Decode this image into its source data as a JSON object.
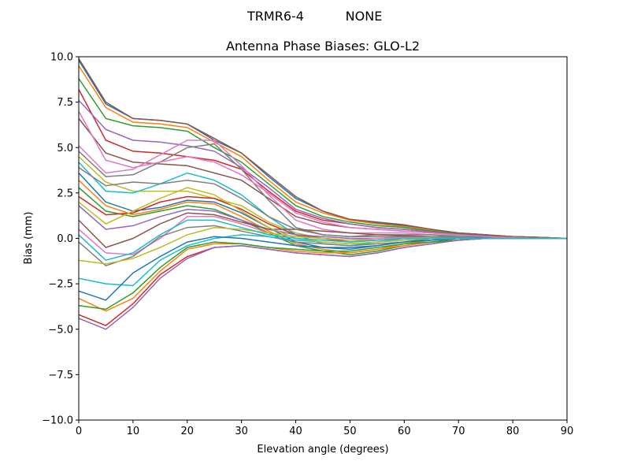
{
  "figure": {
    "suptitle_left": "TRMR6-4",
    "suptitle_right": "NONE"
  },
  "chart_data": {
    "type": "line",
    "title": "Antenna Phase Biases: GLO-L2",
    "xlabel": "Elevation angle (degrees)",
    "ylabel": "Bias (mm)",
    "xlim": [
      0,
      90
    ],
    "ylim": [
      -10,
      10
    ],
    "xticks": [
      0,
      10,
      20,
      30,
      40,
      50,
      60,
      70,
      80,
      90
    ],
    "yticks": [
      -10.0,
      -7.5,
      -5.0,
      -2.5,
      0.0,
      2.5,
      5.0,
      7.5,
      10.0
    ],
    "grid": false,
    "legend": "none",
    "colors": [
      "#1f77b4",
      "#ff7f0e",
      "#2ca02c",
      "#d62728",
      "#9467bd",
      "#8c564b",
      "#e377c2",
      "#7f7f7f",
      "#bcbd22",
      "#17becf"
    ],
    "x": [
      0,
      5,
      10,
      15,
      20,
      25,
      30,
      35,
      40,
      45,
      50,
      55,
      60,
      65,
      70,
      75,
      80,
      85,
      90
    ],
    "series": [
      {
        "values": [
          9.8,
          7.4,
          6.6,
          6.5,
          6.3,
          5.4,
          4.7,
          3.4,
          2.2,
          1.5,
          1.0,
          0.85,
          0.7,
          0.5,
          0.3,
          0.2,
          0.1,
          0.05,
          0
        ]
      },
      {
        "values": [
          9.5,
          7.2,
          6.4,
          6.3,
          6.1,
          5.3,
          4.5,
          3.2,
          2.0,
          1.4,
          1.0,
          0.8,
          0.65,
          0.45,
          0.3,
          0.2,
          0.1,
          0.05,
          0
        ]
      },
      {
        "values": [
          8.8,
          6.6,
          6.2,
          6.1,
          5.9,
          5.0,
          4.2,
          3.0,
          1.8,
          1.2,
          0.9,
          0.7,
          0.6,
          0.4,
          0.25,
          0.15,
          0.1,
          0.05,
          0
        ]
      },
      {
        "values": [
          8.2,
          5.4,
          4.8,
          4.7,
          4.5,
          4.3,
          3.8,
          2.6,
          1.5,
          1.0,
          0.8,
          0.6,
          0.5,
          0.35,
          0.2,
          0.15,
          0.1,
          0.05,
          0
        ]
      },
      {
        "values": [
          7.6,
          6.0,
          5.4,
          5.3,
          5.1,
          4.8,
          3.9,
          2.8,
          1.6,
          1.1,
          0.8,
          0.6,
          0.5,
          0.35,
          0.2,
          0.15,
          0.1,
          0.05,
          0
        ]
      },
      {
        "values": [
          6.6,
          4.7,
          4.2,
          4.1,
          4.0,
          3.6,
          3.2,
          2.2,
          1.2,
          0.8,
          0.6,
          0.5,
          0.4,
          0.3,
          0.2,
          0.1,
          0.05,
          0,
          0
        ]
      },
      {
        "values": [
          5.1,
          3.6,
          3.8,
          4.6,
          5.4,
          5.4,
          4.0,
          2.4,
          1.0,
          0.5,
          0.3,
          0.3,
          0.3,
          0.2,
          0.15,
          0.1,
          0.05,
          0,
          0
        ]
      },
      {
        "values": [
          4.8,
          3.4,
          3.5,
          4.2,
          5.0,
          5.2,
          3.8,
          2.1,
          0.6,
          0.2,
          0.1,
          0.2,
          0.2,
          0.2,
          0.1,
          0.1,
          0.05,
          0,
          0
        ]
      },
      {
        "values": [
          4.5,
          3.1,
          2.6,
          2.6,
          2.6,
          2.2,
          1.8,
          0.9,
          0.3,
          0.0,
          -0.1,
          0.0,
          0.1,
          0.1,
          0.1,
          0.05,
          0,
          0,
          0
        ]
      },
      {
        "values": [
          4.2,
          2.6,
          2.5,
          3.0,
          3.6,
          3.2,
          2.4,
          1.2,
          0.2,
          -0.3,
          -0.4,
          -0.2,
          0.0,
          0.1,
          0.1,
          0.05,
          0,
          0,
          0
        ]
      },
      {
        "values": [
          3.6,
          2.0,
          1.5,
          1.7,
          2.1,
          2.0,
          1.4,
          0.6,
          -0.2,
          -0.5,
          -0.6,
          -0.4,
          -0.2,
          0.0,
          0.05,
          0.05,
          0,
          0,
          0
        ]
      },
      {
        "values": [
          3.2,
          1.8,
          1.3,
          1.6,
          2.0,
          1.9,
          1.2,
          0.4,
          -0.3,
          -0.6,
          -0.8,
          -0.6,
          -0.3,
          -0.1,
          0.0,
          0.0,
          0,
          0,
          0
        ]
      },
      {
        "values": [
          2.8,
          1.5,
          1.2,
          1.5,
          1.8,
          1.6,
          1.0,
          0.3,
          -0.4,
          -0.7,
          -0.9,
          -0.7,
          -0.4,
          -0.2,
          0.0,
          0,
          0,
          0,
          0
        ]
      },
      {
        "values": [
          2.3,
          1.3,
          1.4,
          2.0,
          2.3,
          2.2,
          1.6,
          0.8,
          0.2,
          0.0,
          -0.2,
          -0.1,
          0.0,
          0.05,
          0.05,
          0,
          0,
          0,
          0
        ]
      },
      {
        "values": [
          1.8,
          0.5,
          0.7,
          1.2,
          1.6,
          1.5,
          1.0,
          0.5,
          0.2,
          0.1,
          0.0,
          0.0,
          0.05,
          0.05,
          0,
          0,
          0,
          0,
          0
        ]
      },
      {
        "values": [
          1.0,
          -0.5,
          0.0,
          0.8,
          1.4,
          1.3,
          0.9,
          0.5,
          0.5,
          0.4,
          0.3,
          0.2,
          0.15,
          0.1,
          0.05,
          0,
          0,
          0,
          0
        ]
      },
      {
        "values": [
          0.5,
          -0.8,
          -0.9,
          0.0,
          1.2,
          1.2,
          0.8,
          0.3,
          0.1,
          0.0,
          -0.1,
          0.0,
          0.05,
          0.05,
          0,
          0,
          0,
          0,
          0
        ]
      },
      {
        "values": [
          -0.2,
          -1.5,
          -1.0,
          0.1,
          0.6,
          0.7,
          0.4,
          0.1,
          -0.2,
          -0.3,
          -0.4,
          -0.3,
          -0.2,
          -0.1,
          0,
          0,
          0,
          0,
          0
        ]
      },
      {
        "values": [
          -1.2,
          -1.4,
          -1.1,
          -0.5,
          0.2,
          0.6,
          0.5,
          0.3,
          0.1,
          0.0,
          -0.1,
          -0.1,
          0,
          0,
          0,
          0,
          0,
          0,
          0
        ]
      },
      {
        "values": [
          -2.2,
          -2.5,
          -2.6,
          -1.2,
          -0.4,
          0.0,
          0.2,
          0.1,
          -0.1,
          -0.2,
          -0.3,
          -0.2,
          -0.1,
          0,
          0,
          0,
          0,
          0,
          0
        ]
      },
      {
        "values": [
          -2.9,
          -3.4,
          -1.9,
          -1.0,
          -0.2,
          0.1,
          0.0,
          -0.2,
          -0.4,
          -0.5,
          -0.5,
          -0.4,
          -0.2,
          -0.1,
          0,
          0,
          0,
          0,
          0
        ]
      },
      {
        "values": [
          -3.3,
          -4.0,
          -3.3,
          -1.8,
          -0.6,
          -0.3,
          -0.3,
          -0.5,
          -0.7,
          -0.8,
          -0.8,
          -0.6,
          -0.4,
          -0.2,
          -0.1,
          0,
          0,
          0,
          0
        ]
      },
      {
        "values": [
          -3.7,
          -3.9,
          -3.0,
          -1.6,
          -0.5,
          -0.2,
          -0.3,
          -0.5,
          -0.6,
          -0.7,
          -0.7,
          -0.5,
          -0.3,
          -0.2,
          -0.1,
          0,
          0,
          0,
          0
        ]
      },
      {
        "values": [
          -4.2,
          -4.8,
          -3.6,
          -2.0,
          -1.0,
          -0.5,
          -0.4,
          -0.6,
          -0.8,
          -0.9,
          -1.0,
          -0.8,
          -0.5,
          -0.3,
          -0.1,
          0,
          0,
          0,
          0
        ]
      },
      {
        "values": [
          -4.4,
          -5.0,
          -3.8,
          -2.2,
          -1.1,
          -0.5,
          -0.4,
          -0.6,
          -0.8,
          -0.9,
          -1.0,
          -0.8,
          -0.5,
          -0.3,
          -0.1,
          0,
          0,
          0,
          0
        ]
      },
      {
        "values": [
          9.9,
          7.5,
          6.6,
          6.5,
          6.3,
          5.5,
          4.7,
          3.5,
          2.3,
          1.5,
          1.05,
          0.9,
          0.75,
          0.5,
          0.3,
          0.2,
          0.1,
          0.05,
          0
        ]
      },
      {
        "values": [
          7.0,
          4.3,
          3.9,
          4.2,
          4.5,
          4.2,
          3.5,
          2.5,
          1.4,
          0.9,
          0.6,
          0.5,
          0.4,
          0.3,
          0.2,
          0.1,
          0.05,
          0,
          0
        ]
      },
      {
        "values": [
          3.9,
          2.9,
          3.1,
          3.0,
          3.2,
          3.0,
          2.2,
          1.2,
          0.5,
          0.2,
          0.1,
          0.1,
          0.1,
          0.1,
          0.05,
          0,
          0,
          0,
          0
        ]
      },
      {
        "values": [
          2.0,
          0.8,
          1.5,
          2.2,
          2.8,
          2.4,
          1.5,
          0.6,
          0.0,
          -0.2,
          -0.3,
          -0.2,
          -0.1,
          0,
          0,
          0,
          0,
          0,
          0
        ]
      },
      {
        "values": [
          0.2,
          -1.2,
          -0.8,
          0.2,
          1.0,
          1.0,
          0.6,
          0.2,
          0.0,
          -0.1,
          -0.2,
          -0.1,
          0,
          0,
          0,
          0,
          0,
          0,
          0
        ]
      }
    ]
  }
}
